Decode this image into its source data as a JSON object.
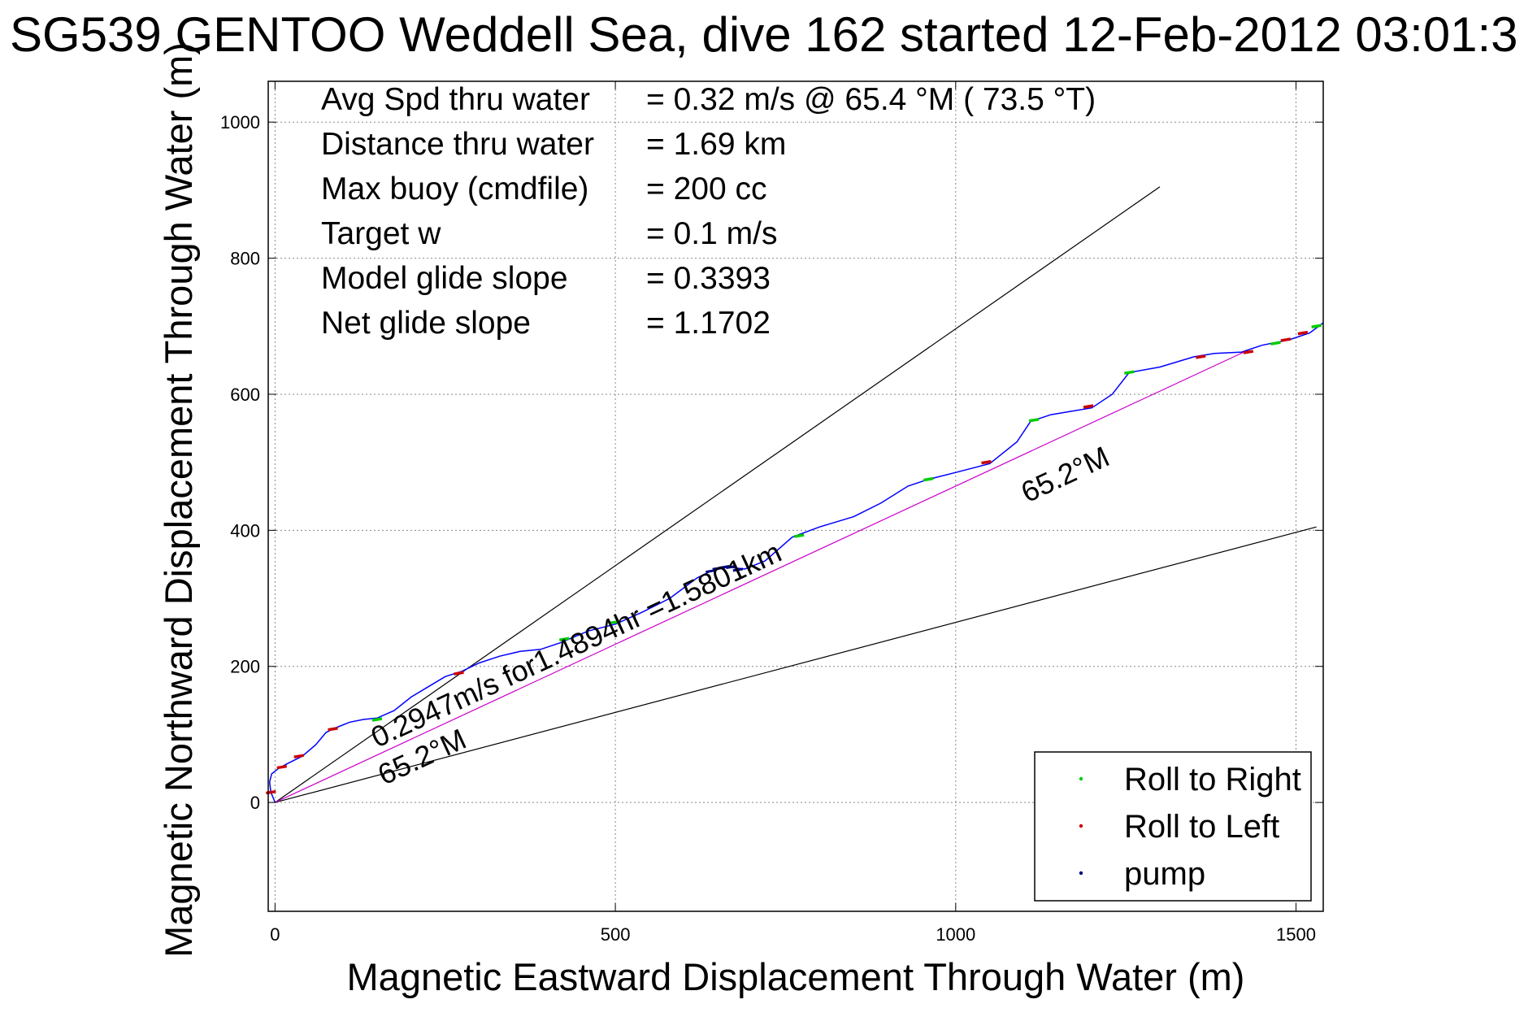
{
  "chart_data": {
    "type": "line",
    "title": "SG539 GENTOO Weddell Sea, dive 162 started 12-Feb-2012 03:01:3",
    "xlabel": "Magnetic Eastward Displacement Through Water (m)",
    "ylabel": "Magnetic Northward Displacement Through Water (m)",
    "xlim": [
      -10,
      1540
    ],
    "ylim": [
      -160,
      1060
    ],
    "xticks": [
      0,
      500,
      1000,
      1500
    ],
    "yticks": [
      0,
      200,
      400,
      600,
      800,
      1000
    ],
    "grid": true,
    "legend_position": "bottom-right",
    "info": [
      {
        "label": "Avg Spd thru water",
        "value": "=  0.32 m/s @  65.4 °M ( 73.5 °T)"
      },
      {
        "label": "Distance thru water",
        "value": "=  1.69 km"
      },
      {
        "label": "Max buoy (cmdfile)",
        "value": "= 200 cc"
      },
      {
        "label": "Target w",
        "value": "= 0.1 m/s"
      },
      {
        "label": "Model glide slope",
        "value": "= 0.3393"
      },
      {
        "label": "Net glide slope",
        "value": "= 1.1702"
      }
    ],
    "annotations": [
      {
        "text": "0.2947m/s for1.4894hr =1.5801km",
        "x": 150,
        "y": 80
      },
      {
        "text": "65.2°M",
        "x": 160,
        "y": 25
      },
      {
        "text": "65.2°M",
        "x": 1105,
        "y": 440
      }
    ],
    "reference_lines": [
      {
        "name": "upper envelope",
        "x": [
          0,
          1300
        ],
        "y": [
          0,
          905
        ]
      },
      {
        "name": "lower envelope",
        "x": [
          0,
          1530
        ],
        "y": [
          0,
          405
        ]
      },
      {
        "name": "net heading",
        "x": [
          0,
          1430
        ],
        "y": [
          0,
          665
        ]
      }
    ],
    "track": {
      "x": [
        0,
        -6,
        -8,
        -5,
        5,
        20,
        40,
        60,
        75,
        90,
        110,
        130,
        150,
        175,
        200,
        225,
        250,
        275,
        300,
        330,
        360,
        390,
        420,
        460,
        500,
        540,
        580,
        620,
        640,
        665,
        690,
        720,
        760,
        800,
        850,
        890,
        930,
        960,
        1000,
        1050,
        1090,
        1110,
        1140,
        1170,
        1200,
        1230,
        1255,
        1300,
        1350,
        1380,
        1420,
        1450,
        1490,
        1520,
        1540
      ],
      "y": [
        0,
        15,
        30,
        42,
        50,
        58,
        68,
        85,
        103,
        110,
        118,
        122,
        124,
        135,
        155,
        170,
        185,
        193,
        205,
        215,
        222,
        225,
        235,
        252,
        262,
        280,
        300,
        330,
        340,
        346,
        343,
        355,
        390,
        405,
        420,
        440,
        465,
        475,
        485,
        498,
        530,
        560,
        570,
        575,
        580,
        600,
        632,
        640,
        655,
        660,
        662,
        672,
        680,
        690,
        705
      ]
    },
    "series": [
      {
        "name": "Roll to Right",
        "color": "#00cc00",
        "x": [
          150,
          425,
          500,
          770,
          960,
          1115,
          1255,
          1470,
          1530
        ],
        "y": [
          122,
          240,
          265,
          392,
          475,
          562,
          632,
          675,
          700
        ]
      },
      {
        "name": "Roll to Left",
        "color": "#cc0000",
        "x": [
          -6,
          10,
          35,
          85,
          270,
          1045,
          1195,
          1360,
          1430,
          1485,
          1510
        ],
        "y": [
          15,
          52,
          68,
          108,
          190,
          500,
          582,
          655,
          662,
          680,
          690
        ]
      },
      {
        "name": "pump",
        "color": "#000080",
        "x": [
          640,
          650,
          660,
          670,
          680
        ],
        "y": [
          340,
          344,
          346,
          346,
          342
        ]
      }
    ],
    "colors": {
      "track": "#0000ff",
      "net_heading": "#cc00cc",
      "envelope": "#000000"
    }
  }
}
